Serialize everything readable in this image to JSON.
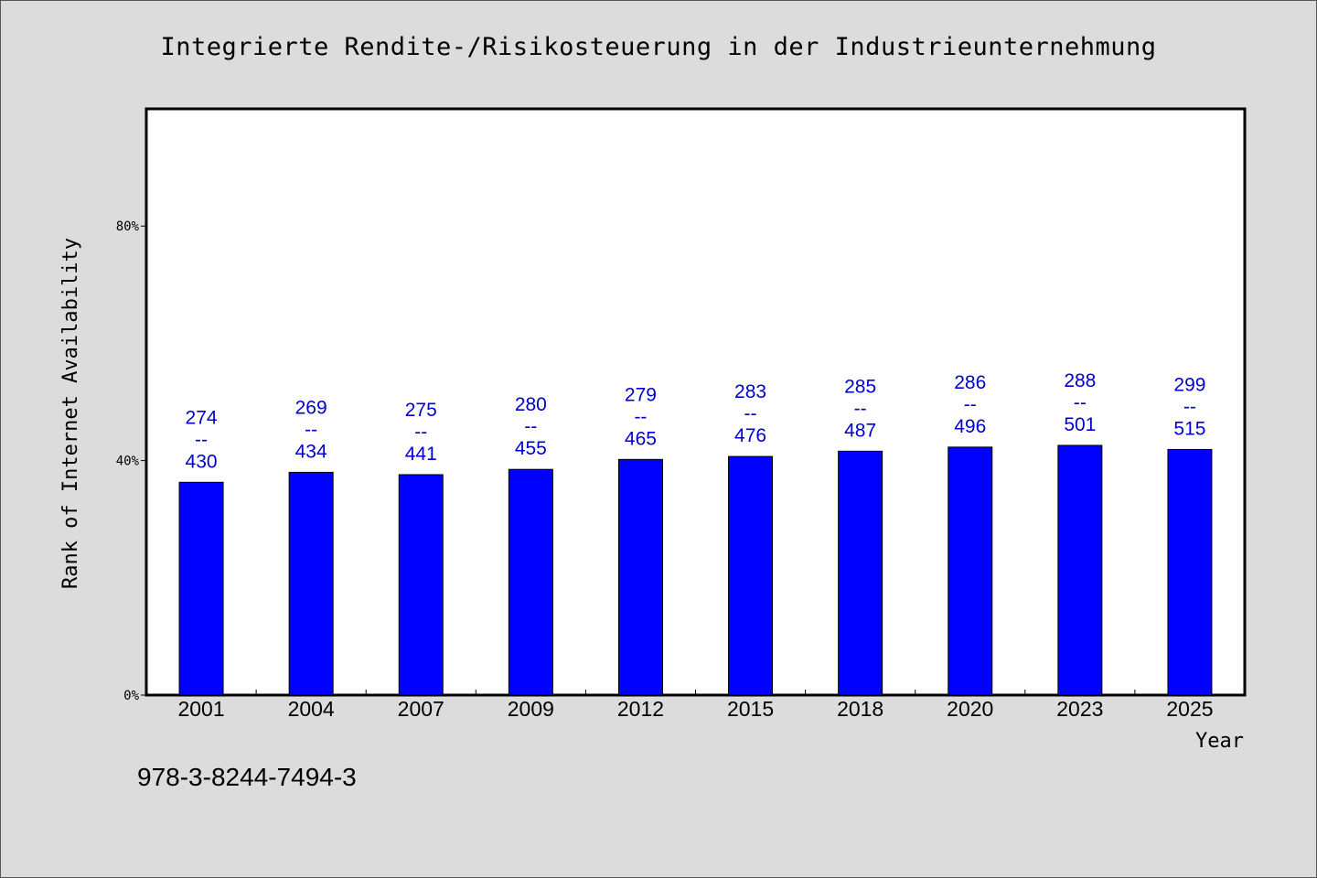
{
  "chart_data": {
    "type": "bar",
    "title": "Integrierte Rendite-/Risikosteuerung in der Industrieunternehmung",
    "xlabel": "Year",
    "ylabel": "Rank of Internet Availability",
    "ylim": [
      0,
      1
    ],
    "yticks": [
      {
        "value": 0,
        "label": "0%"
      },
      {
        "value": 0.4,
        "label": "40%"
      },
      {
        "value": 0.8,
        "label": "80%"
      }
    ],
    "grid": false,
    "categories": [
      "2001",
      "2004",
      "2007",
      "2009",
      "2012",
      "2015",
      "2018",
      "2020",
      "2023",
      "2025"
    ],
    "values": [
      0.363,
      0.38,
      0.376,
      0.385,
      0.402,
      0.407,
      0.416,
      0.423,
      0.426,
      0.419
    ],
    "labels_top": [
      "274",
      "269",
      "275",
      "280",
      "279",
      "283",
      "285",
      "286",
      "288",
      "299"
    ],
    "labels_sep": "--",
    "labels_bottom": [
      "430",
      "434",
      "441",
      "455",
      "465",
      "476",
      "487",
      "496",
      "501",
      "515"
    ],
    "bar_color": "#0000ff",
    "label_color": "#0000cc"
  },
  "footer": {
    "isbn": "978-3-8244-7494-3"
  }
}
